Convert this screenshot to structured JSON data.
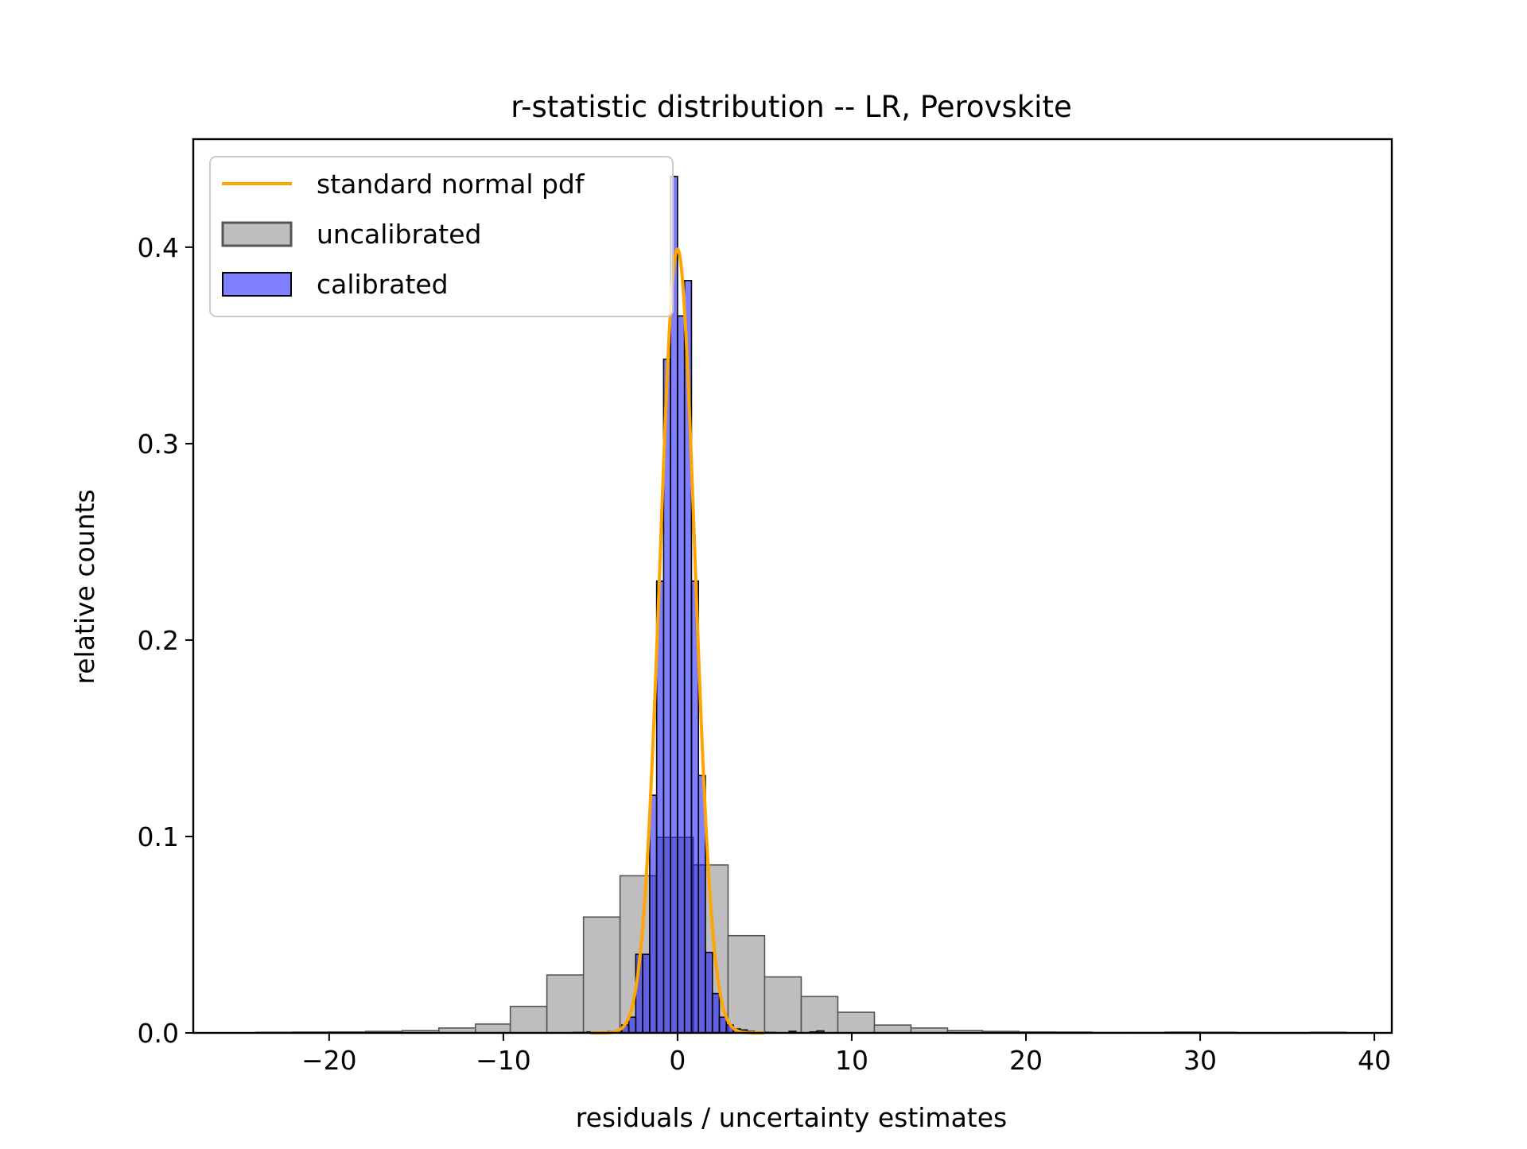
{
  "chart_data": {
    "type": "histogram",
    "title": "r-statistic distribution -- LR, Perovskite",
    "xlabel": "residuals / uncertainty estimates",
    "ylabel": "relative counts",
    "xlim": [
      -27.8,
      41.0
    ],
    "ylim": [
      0,
      0.455
    ],
    "x_ticks": [
      -20,
      -10,
      0,
      10,
      20,
      30,
      40
    ],
    "x_tick_labels": [
      "−20",
      "−10",
      "0",
      "10",
      "20",
      "30",
      "40"
    ],
    "y_ticks": [
      0.0,
      0.1,
      0.2,
      0.3,
      0.4
    ],
    "y_tick_labels": [
      "0.0",
      "0.1",
      "0.2",
      "0.3",
      "0.4"
    ],
    "grid": false,
    "legend_position": "upper-left",
    "series": [
      {
        "name": "uncalibrated",
        "kind": "hist",
        "color": "#bebebe",
        "edge_color": "#555555",
        "bins": [
          {
            "x0": -24.2,
            "x1": -22.1,
            "y": 0.0003
          },
          {
            "x0": -22.1,
            "x1": -20.0,
            "y": 0.0004
          },
          {
            "x0": -20.0,
            "x1": -17.9,
            "y": 0.0005
          },
          {
            "x0": -17.9,
            "x1": -15.8,
            "y": 0.0008
          },
          {
            "x0": -15.8,
            "x1": -13.7,
            "y": 0.0012
          },
          {
            "x0": -13.7,
            "x1": -11.6,
            "y": 0.0025
          },
          {
            "x0": -11.6,
            "x1": -9.6,
            "y": 0.0045
          },
          {
            "x0": -9.6,
            "x1": -7.5,
            "y": 0.0135
          },
          {
            "x0": -7.5,
            "x1": -5.4,
            "y": 0.0295
          },
          {
            "x0": -5.4,
            "x1": -3.3,
            "y": 0.059
          },
          {
            "x0": -3.3,
            "x1": -1.2,
            "y": 0.08
          },
          {
            "x0": -1.2,
            "x1": 0.9,
            "y": 0.0995
          },
          {
            "x0": 0.9,
            "x1": 2.9,
            "y": 0.0855
          },
          {
            "x0": 2.9,
            "x1": 5.0,
            "y": 0.0495
          },
          {
            "x0": 5.0,
            "x1": 7.1,
            "y": 0.0285
          },
          {
            "x0": 7.1,
            "x1": 9.2,
            "y": 0.0185
          },
          {
            "x0": 9.2,
            "x1": 11.3,
            "y": 0.0105
          },
          {
            "x0": 11.3,
            "x1": 13.4,
            "y": 0.004
          },
          {
            "x0": 13.4,
            "x1": 15.5,
            "y": 0.0025
          },
          {
            "x0": 15.5,
            "x1": 17.5,
            "y": 0.0012
          },
          {
            "x0": 17.5,
            "x1": 19.6,
            "y": 0.0008
          },
          {
            "x0": 19.6,
            "x1": 21.7,
            "y": 0.0005
          },
          {
            "x0": 21.7,
            "x1": 23.8,
            "y": 0.0004
          },
          {
            "x0": 23.8,
            "x1": 25.9,
            "y": 0.0002
          },
          {
            "x0": 25.9,
            "x1": 28.0,
            "y": 0.0002
          },
          {
            "x0": 28.0,
            "x1": 30.0,
            "y": 0.0004
          },
          {
            "x0": 30.0,
            "x1": 32.1,
            "y": 0.0003
          },
          {
            "x0": 32.1,
            "x1": 34.2,
            "y": 0.0001
          },
          {
            "x0": 34.2,
            "x1": 36.3,
            "y": 0.0001
          },
          {
            "x0": 36.3,
            "x1": 38.4,
            "y": 0.0003
          }
        ]
      },
      {
        "name": "calibrated",
        "kind": "hist",
        "color": "#0000ff",
        "opacity": 0.5,
        "edge_color": "#000000",
        "bins": [
          {
            "x0": -6.0,
            "x1": -5.6,
            "y": 0.0002
          },
          {
            "x0": -5.6,
            "x1": -5.2,
            "y": 0.0002
          },
          {
            "x0": -5.2,
            "x1": -4.8,
            "y": 0.0005
          },
          {
            "x0": -4.8,
            "x1": -4.4,
            "y": 0.0004
          },
          {
            "x0": -4.4,
            "x1": -4.0,
            "y": 0.0003
          },
          {
            "x0": -4.0,
            "x1": -3.6,
            "y": 0.0008
          },
          {
            "x0": -3.6,
            "x1": -3.2,
            "y": 0.001
          },
          {
            "x0": -3.2,
            "x1": -2.8,
            "y": 0.004
          },
          {
            "x0": -2.8,
            "x1": -2.4,
            "y": 0.008
          },
          {
            "x0": -2.4,
            "x1": -2.0,
            "y": 0.04
          },
          {
            "x0": -2.0,
            "x1": -1.6,
            "y": 0.04
          },
          {
            "x0": -1.6,
            "x1": -1.2,
            "y": 0.121
          },
          {
            "x0": -1.2,
            "x1": -0.8,
            "y": 0.23
          },
          {
            "x0": -0.8,
            "x1": -0.4,
            "y": 0.343
          },
          {
            "x0": -0.4,
            "x1": 0.0,
            "y": 0.436
          },
          {
            "x0": 0.0,
            "x1": 0.4,
            "y": 0.365
          },
          {
            "x0": 0.4,
            "x1": 0.8,
            "y": 0.383
          },
          {
            "x0": 0.8,
            "x1": 1.2,
            "y": 0.23
          },
          {
            "x0": 1.2,
            "x1": 1.6,
            "y": 0.131
          },
          {
            "x0": 1.6,
            "x1": 2.0,
            "y": 0.041
          },
          {
            "x0": 2.0,
            "x1": 2.4,
            "y": 0.02
          },
          {
            "x0": 2.4,
            "x1": 2.8,
            "y": 0.008
          },
          {
            "x0": 2.8,
            "x1": 3.2,
            "y": 0.004
          },
          {
            "x0": 3.2,
            "x1": 3.6,
            "y": 0.002
          },
          {
            "x0": 3.6,
            "x1": 4.0,
            "y": 0.0015
          },
          {
            "x0": 4.0,
            "x1": 4.4,
            "y": 0.0008
          },
          {
            "x0": 4.4,
            "x1": 4.8,
            "y": 0.0005
          },
          {
            "x0": 4.8,
            "x1": 5.2,
            "y": 0.0003
          },
          {
            "x0": 5.2,
            "x1": 5.6,
            "y": 0.0002
          },
          {
            "x0": 6.4,
            "x1": 6.8,
            "y": 0.0008
          },
          {
            "x0": 7.6,
            "x1": 8.0,
            "y": 0.0005
          },
          {
            "x0": 8.0,
            "x1": 8.4,
            "y": 0.001
          }
        ]
      },
      {
        "name": "standard normal pdf",
        "kind": "line",
        "color": "#ffa500",
        "function": "standard_normal_pdf",
        "x_range": [
          -5.0,
          5.0
        ]
      }
    ]
  }
}
